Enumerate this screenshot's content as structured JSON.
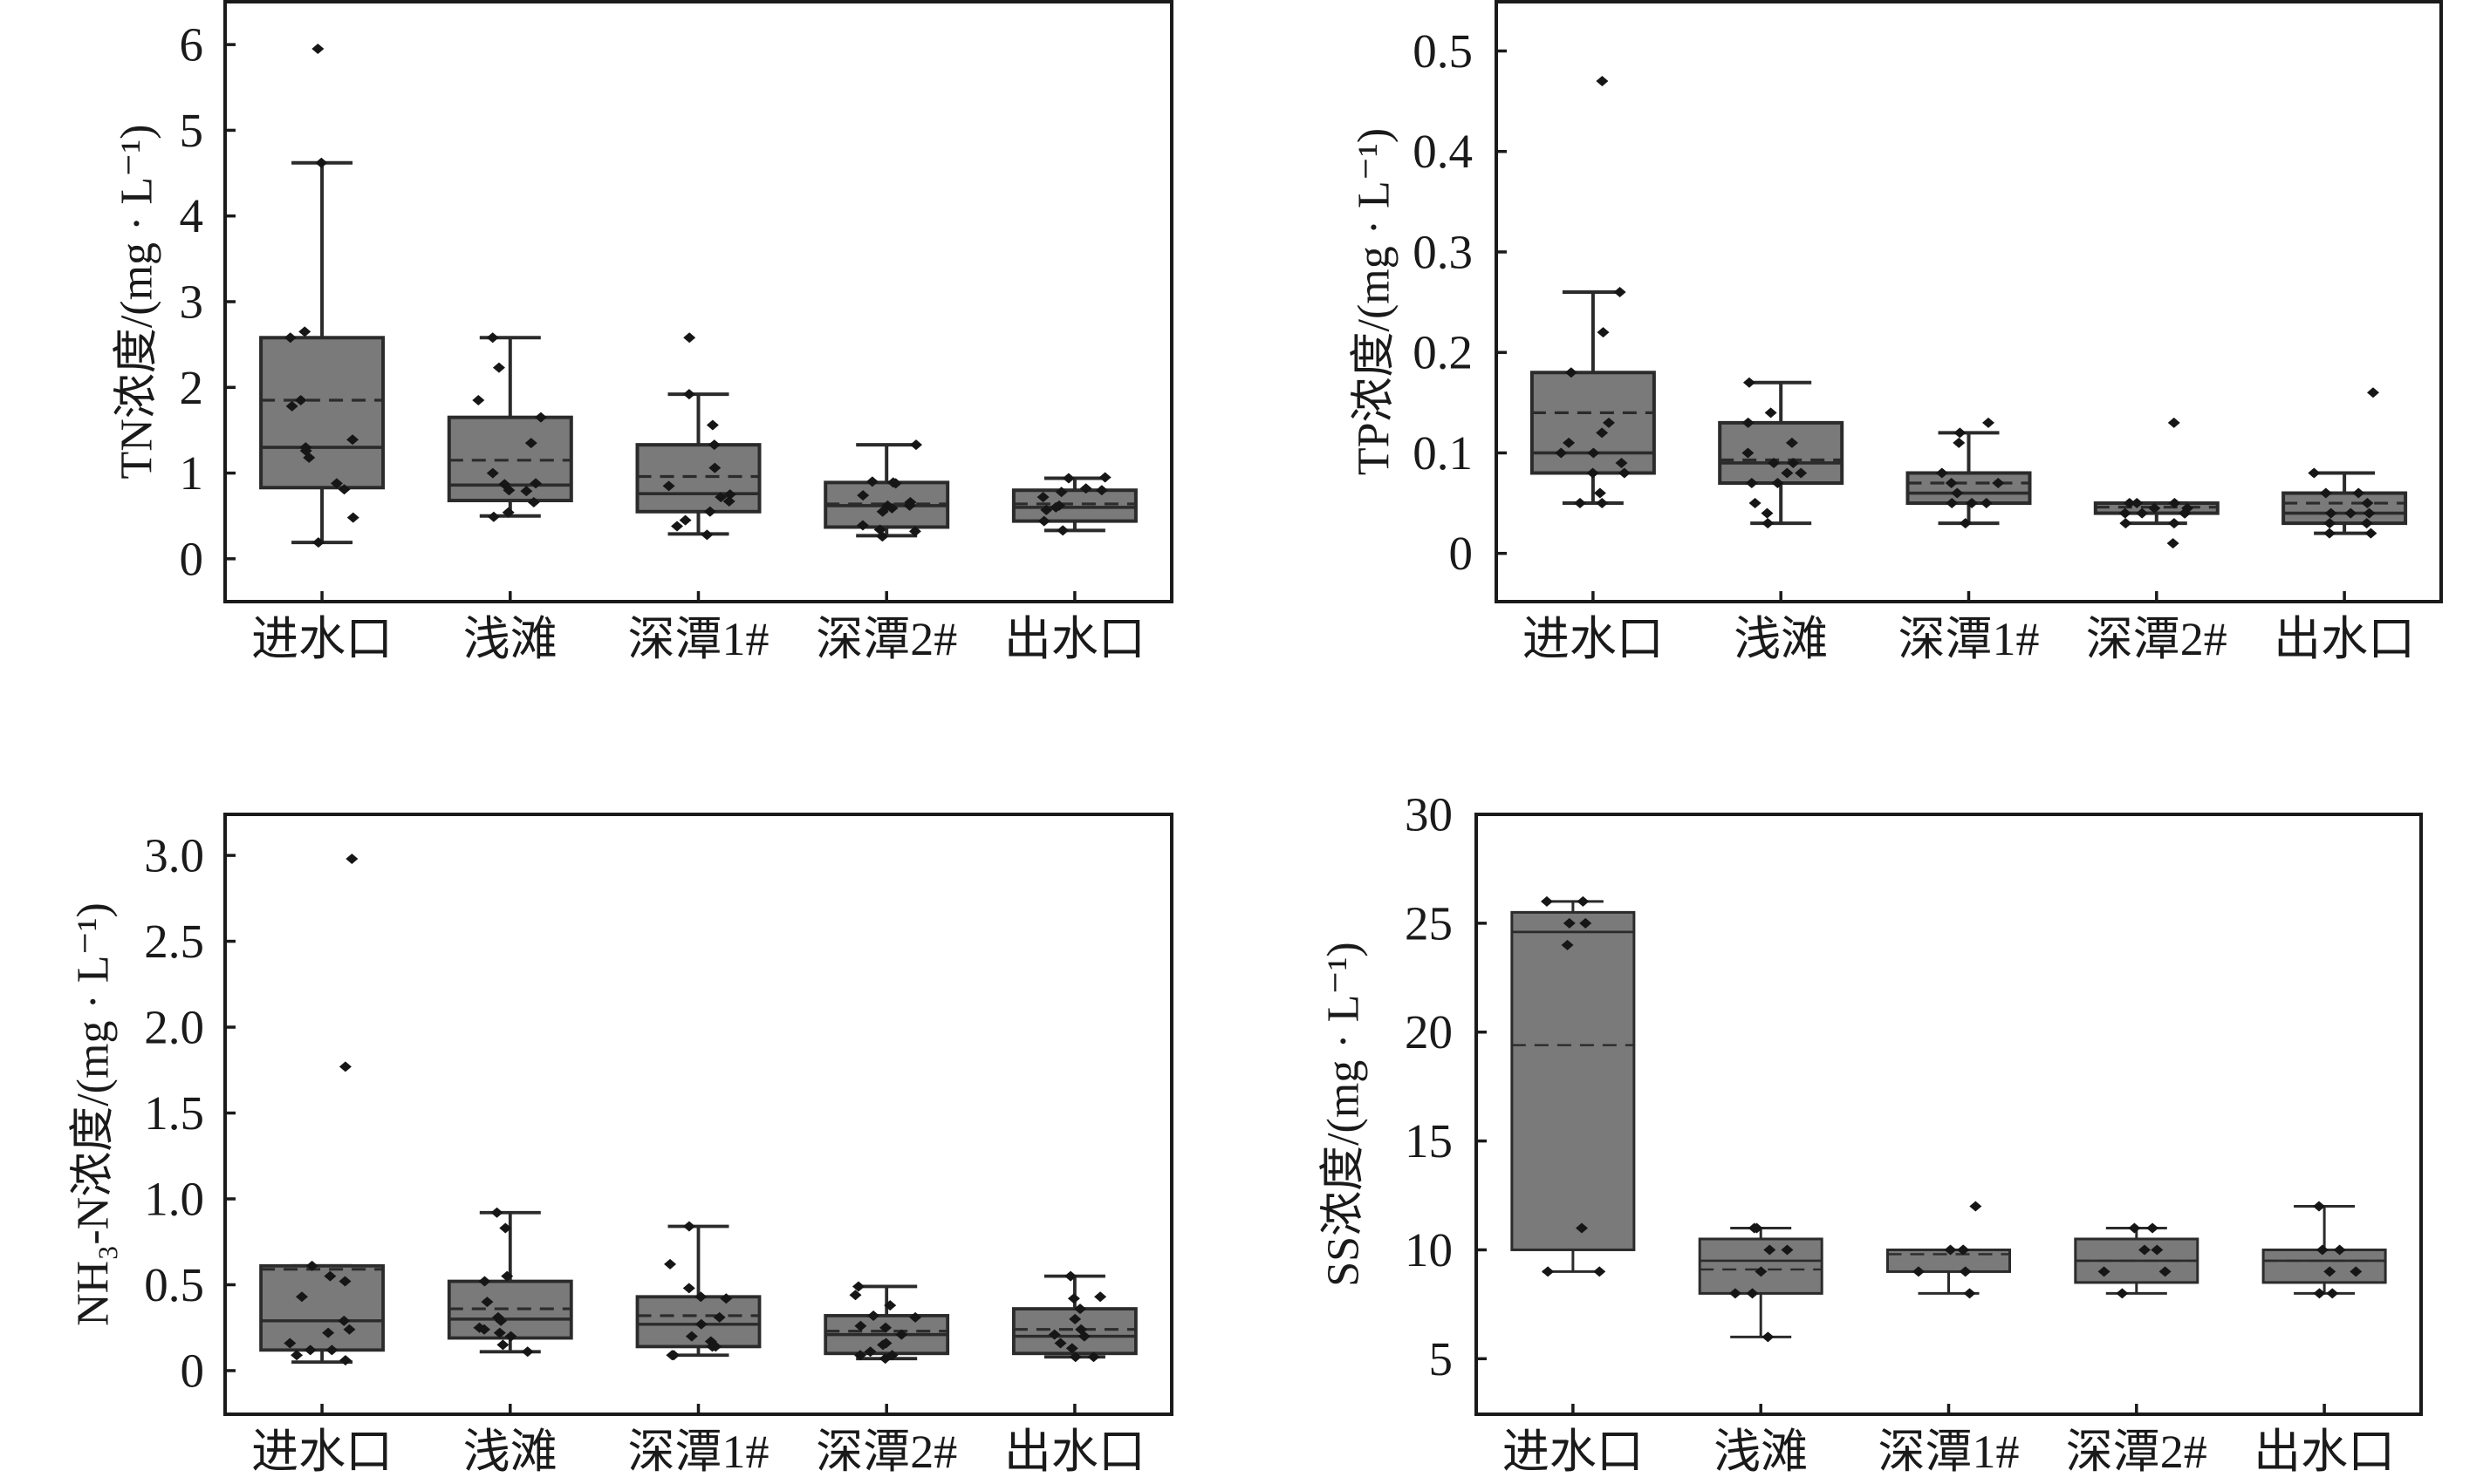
{
  "colors": {
    "background": "#ffffff",
    "frame": "#1a1a1a",
    "box_fill": "#7a7a7a",
    "box_line": "#2b2b2b",
    "point": "#161616"
  },
  "chart_data": [
    {
      "type": "box",
      "ylabel": "TN浓度/(mg · L⁻¹)",
      "categories": [
        "进水口",
        "浅滩",
        "深潭1#",
        "深潭2#",
        "出水口"
      ],
      "ylim": [
        -0.5,
        6.5
      ],
      "yticks": [
        0,
        1,
        2,
        3,
        4,
        5,
        6
      ],
      "ytick_labels": [
        "0",
        "1",
        "2",
        "3",
        "4",
        "5",
        "6"
      ],
      "grid": false,
      "legend": "none",
      "boxes": [
        {
          "whisker_low": 0.19,
          "q1": 0.83,
          "median": 1.3,
          "q3": 2.58,
          "whisker_high": 4.62,
          "mean": 1.85,
          "points": [
            5.95,
            4.62,
            2.65,
            2.58,
            1.85,
            1.78,
            1.39,
            1.3,
            1.26,
            1.18,
            0.88,
            0.81,
            0.48,
            0.19
          ]
        },
        {
          "whisker_low": 0.5,
          "q1": 0.68,
          "median": 0.86,
          "q3": 1.65,
          "whisker_high": 2.58,
          "mean": 1.15,
          "points": [
            2.58,
            2.23,
            1.85,
            1.65,
            1.35,
            1.0,
            0.88,
            0.87,
            0.8,
            0.79,
            0.66,
            0.54,
            0.49
          ]
        },
        {
          "whisker_low": 0.29,
          "q1": 0.55,
          "median": 0.76,
          "q3": 1.33,
          "whisker_high": 1.92,
          "mean": 0.96,
          "points": [
            2.58,
            1.92,
            1.56,
            1.33,
            1.06,
            0.85,
            0.75,
            0.72,
            0.67,
            0.55,
            0.45,
            0.38,
            0.28
          ]
        },
        {
          "whisker_low": 0.27,
          "q1": 0.37,
          "median": 0.62,
          "q3": 0.89,
          "whisker_high": 1.33,
          "mean": 0.64,
          "points": [
            1.33,
            0.9,
            0.89,
            0.88,
            0.74,
            0.66,
            0.62,
            0.62,
            0.59,
            0.55,
            0.39,
            0.34,
            0.32,
            0.26
          ]
        },
        {
          "whisker_low": 0.33,
          "q1": 0.44,
          "median": 0.6,
          "q3": 0.8,
          "whisker_high": 0.94,
          "mean": 0.64,
          "points": [
            0.95,
            0.94,
            0.82,
            0.8,
            0.78,
            0.72,
            0.62,
            0.6,
            0.57,
            0.44,
            0.33
          ]
        }
      ]
    },
    {
      "type": "box",
      "ylabel": "TP浓度/(mg · L⁻¹)",
      "categories": [
        "进水口",
        "浅滩",
        "深潭1#",
        "深潭2#",
        "出水口"
      ],
      "ylim": [
        -0.048,
        0.549
      ],
      "yticks": [
        0,
        0.1,
        0.2,
        0.3,
        0.4,
        0.5
      ],
      "ytick_labels": [
        "0",
        "0.1",
        "0.2",
        "0.3",
        "0.4",
        "0.5"
      ],
      "grid": false,
      "legend": "none",
      "boxes": [
        {
          "whisker_low": 0.05,
          "q1": 0.08,
          "median": 0.1,
          "q3": 0.18,
          "whisker_high": 0.26,
          "mean": 0.14,
          "points": [
            0.47,
            0.26,
            0.22,
            0.18,
            0.13,
            0.12,
            0.11,
            0.1,
            0.1,
            0.09,
            0.08,
            0.08,
            0.06,
            0.05,
            0.05
          ]
        },
        {
          "whisker_low": 0.03,
          "q1": 0.07,
          "median": 0.09,
          "q3": 0.13,
          "whisker_high": 0.17,
          "mean": 0.093,
          "points": [
            0.17,
            0.14,
            0.13,
            0.11,
            0.1,
            0.09,
            0.09,
            0.08,
            0.08,
            0.07,
            0.07,
            0.05,
            0.04,
            0.03
          ]
        },
        {
          "whisker_low": 0.03,
          "q1": 0.05,
          "median": 0.06,
          "q3": 0.08,
          "whisker_high": 0.12,
          "mean": 0.07,
          "points": [
            0.13,
            0.12,
            0.11,
            0.08,
            0.07,
            0.07,
            0.06,
            0.05,
            0.05,
            0.05,
            0.03
          ]
        },
        {
          "whisker_low": 0.03,
          "q1": 0.04,
          "median": 0.04,
          "q3": 0.05,
          "whisker_high": 0.05,
          "mean": 0.046,
          "points": [
            0.13,
            0.05,
            0.05,
            0.05,
            0.045,
            0.045,
            0.04,
            0.04,
            0.04,
            0.04,
            0.03,
            0.03,
            0.01
          ]
        },
        {
          "whisker_low": 0.02,
          "q1": 0.03,
          "median": 0.04,
          "q3": 0.06,
          "whisker_high": 0.08,
          "mean": 0.05,
          "points": [
            0.16,
            0.08,
            0.06,
            0.06,
            0.05,
            0.04,
            0.04,
            0.04,
            0.03,
            0.03,
            0.02,
            0.02
          ]
        }
      ]
    },
    {
      "type": "box",
      "ylabel": "NH₃-N浓度/(mg · L⁻¹)",
      "categories": [
        "进水口",
        "浅滩",
        "深潭1#",
        "深潭2#",
        "出水口"
      ],
      "ylim": [
        -0.254,
        3.239
      ],
      "yticks": [
        0,
        0.5,
        1.0,
        1.5,
        2.0,
        2.5,
        3.0
      ],
      "ytick_labels": [
        "0",
        "0.5",
        "1.0",
        "1.5",
        "2.0",
        "2.5",
        "3.0"
      ],
      "grid": false,
      "legend": "none",
      "boxes": [
        {
          "whisker_low": 0.05,
          "q1": 0.12,
          "median": 0.29,
          "q3": 0.61,
          "whisker_high": 0.61,
          "mean": 0.59,
          "points": [
            2.98,
            1.77,
            0.61,
            0.55,
            0.52,
            0.43,
            0.29,
            0.24,
            0.22,
            0.16,
            0.12,
            0.12,
            0.09,
            0.06
          ]
        },
        {
          "whisker_low": 0.11,
          "q1": 0.19,
          "median": 0.3,
          "q3": 0.52,
          "whisker_high": 0.92,
          "mean": 0.36,
          "points": [
            0.92,
            0.83,
            0.55,
            0.52,
            0.4,
            0.31,
            0.29,
            0.25,
            0.24,
            0.22,
            0.2,
            0.15,
            0.11
          ]
        },
        {
          "whisker_low": 0.09,
          "q1": 0.14,
          "median": 0.27,
          "q3": 0.43,
          "whisker_high": 0.84,
          "mean": 0.32,
          "points": [
            0.84,
            0.62,
            0.48,
            0.43,
            0.42,
            0.31,
            0.27,
            0.2,
            0.17,
            0.14,
            0.14,
            0.09,
            0.09
          ]
        },
        {
          "whisker_low": 0.07,
          "q1": 0.1,
          "median": 0.21,
          "q3": 0.32,
          "whisker_high": 0.49,
          "mean": 0.23,
          "points": [
            0.49,
            0.44,
            0.38,
            0.32,
            0.31,
            0.26,
            0.25,
            0.21,
            0.16,
            0.15,
            0.11,
            0.09,
            0.09,
            0.07
          ]
        },
        {
          "whisker_low": 0.08,
          "q1": 0.1,
          "median": 0.2,
          "q3": 0.36,
          "whisker_high": 0.55,
          "mean": 0.24,
          "points": [
            0.55,
            0.43,
            0.42,
            0.36,
            0.3,
            0.24,
            0.21,
            0.2,
            0.16,
            0.13,
            0.08,
            0.08
          ]
        }
      ]
    },
    {
      "type": "box",
      "ylabel": "SS浓度/(mg · L⁻¹)",
      "categories": [
        "进水口",
        "浅滩",
        "深潭1#",
        "深潭2#",
        "出水口"
      ],
      "ylim": [
        2.45,
        30
      ],
      "yticks": [
        5,
        10,
        15,
        20,
        25,
        30
      ],
      "ytick_labels": [
        "5",
        "10",
        "15",
        "20",
        "25",
        "30"
      ],
      "grid": false,
      "legend": "none",
      "boxes": [
        {
          "whisker_low": 9,
          "q1": 10,
          "median": 24.6,
          "q3": 25.5,
          "whisker_high": 26,
          "mean": 19.4,
          "points": [
            26,
            26,
            25,
            25,
            24,
            11,
            9,
            9
          ]
        },
        {
          "whisker_low": 6,
          "q1": 8,
          "median": 9.5,
          "q3": 10.5,
          "whisker_high": 11,
          "mean": 9.1,
          "points": [
            11,
            11,
            10,
            10,
            9,
            8,
            8,
            6
          ]
        },
        {
          "whisker_low": 8,
          "q1": 9,
          "median": 10,
          "q3": 10,
          "whisker_high": 10,
          "mean": 9.8,
          "points": [
            12,
            10,
            10,
            10,
            9,
            9,
            8
          ]
        },
        {
          "whisker_low": 8,
          "q1": 8.5,
          "median": 9.5,
          "q3": 10.5,
          "whisker_high": 11,
          "mean": 9.5,
          "points": [
            11,
            11,
            10,
            10,
            9,
            9,
            8
          ]
        },
        {
          "whisker_low": 8,
          "q1": 8.5,
          "median": 9.5,
          "q3": 10,
          "whisker_high": 12,
          "mean": 9.5,
          "points": [
            12,
            10,
            10,
            9,
            9,
            8,
            8
          ]
        }
      ]
    }
  ]
}
